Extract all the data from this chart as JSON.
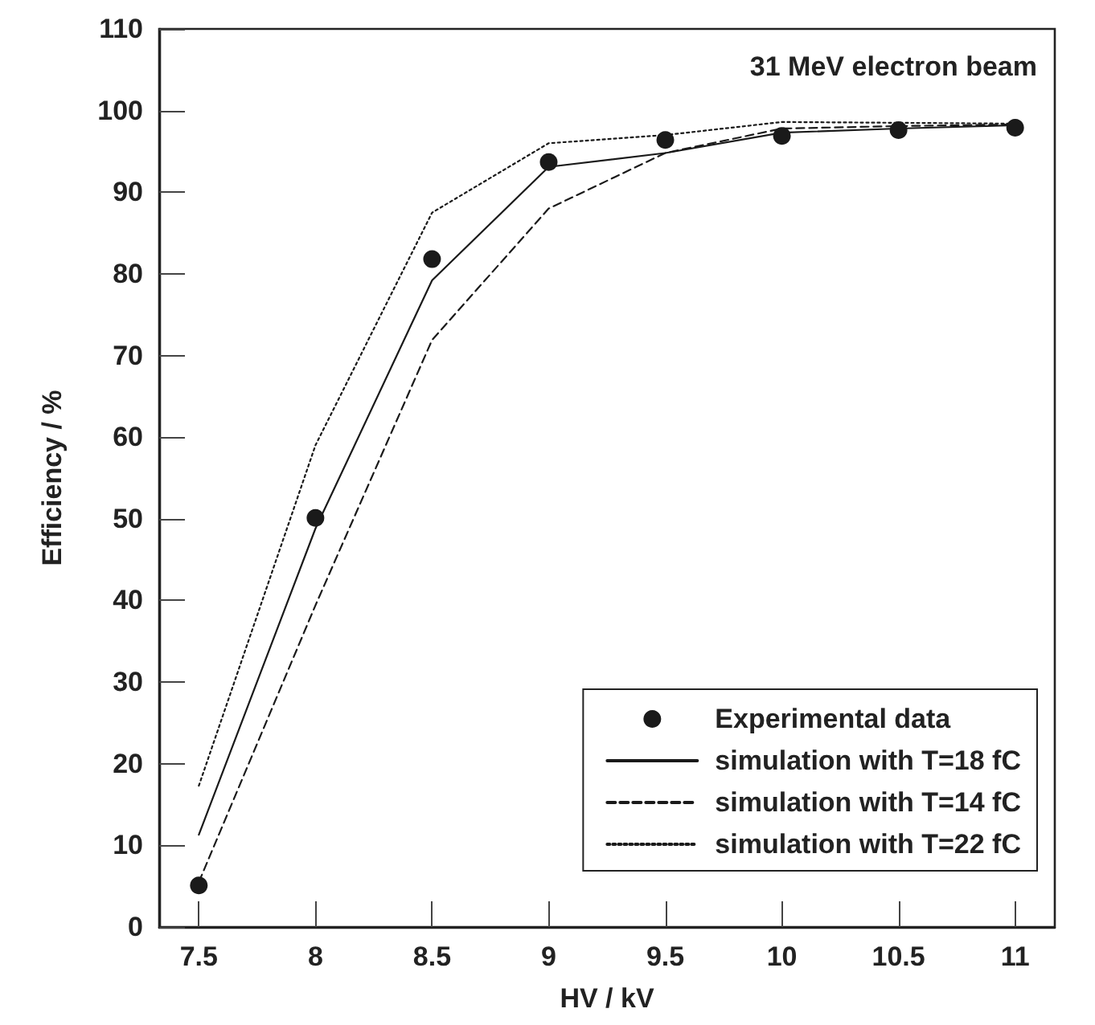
{
  "chart_data": {
    "type": "line",
    "xlabel": "HV / kV",
    "ylabel": "Efficiency / %",
    "annotations": [
      "31 MeV electron beam"
    ],
    "x": [
      7.5,
      8,
      8.5,
      9,
      9.5,
      10,
      10.5,
      11
    ],
    "xlim": [
      7.33,
      11.17
    ],
    "xticks": [
      7.5,
      8,
      8.5,
      9,
      9.5,
      10,
      10.5,
      11
    ],
    "ylim": [
      0,
      110
    ],
    "yticks": [
      0,
      10,
      20,
      30,
      40,
      50,
      60,
      70,
      80,
      90,
      100,
      110
    ],
    "grid": false,
    "legend": "bottom right",
    "series": [
      {
        "name": "Experimental data",
        "type": "scatter",
        "marker": "circle",
        "color": "#1a1a1a",
        "values": [
          5.1,
          50.1,
          81.8,
          93.7,
          96.4,
          96.9,
          97.6,
          97.9
        ]
      },
      {
        "name": "simulation with T=18 fC",
        "type": "line",
        "line_style": "solid",
        "marker": "none",
        "color": "#1a1a1a",
        "values": [
          11.3,
          48.8,
          79.2,
          93.1,
          94.8,
          97.3,
          97.8,
          98.2
        ]
      },
      {
        "name": "simulation with T=14 fC",
        "type": "line",
        "line_style": "dashed",
        "marker": "none",
        "color": "#1a1a1a",
        "values": [
          5.5,
          39.4,
          71.9,
          88.0,
          94.8,
          97.8,
          98.1,
          98.3
        ]
      },
      {
        "name": "simulation with T=22 fC",
        "type": "line",
        "line_style": "dotted",
        "marker": "none",
        "color": "#1a1a1a",
        "values": [
          17.3,
          59.0,
          87.5,
          96.0,
          97.0,
          98.6,
          98.5,
          98.4
        ]
      }
    ]
  }
}
